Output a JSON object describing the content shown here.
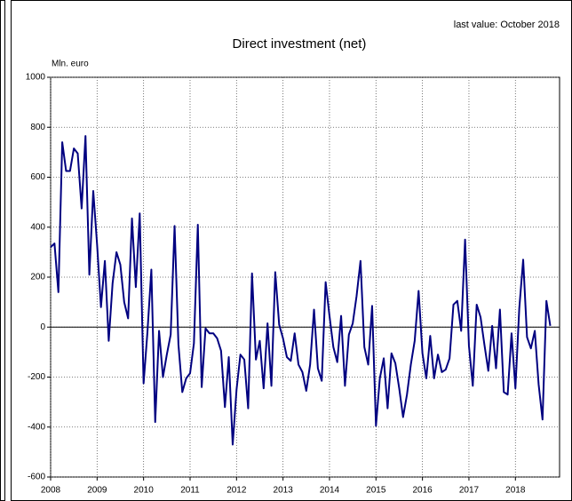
{
  "chart_data": {
    "type": "line",
    "title": "Direct investment (net)",
    "annotation": "last value: October 2018",
    "y_axis_label": "Mln. euro",
    "color": "#000080",
    "x": [
      2008,
      2008.083,
      2008.167,
      2008.25,
      2008.333,
      2008.417,
      2008.5,
      2008.583,
      2008.667,
      2008.75,
      2008.833,
      2008.917,
      2009,
      2009.083,
      2009.167,
      2009.25,
      2009.333,
      2009.417,
      2009.5,
      2009.583,
      2009.667,
      2009.75,
      2009.833,
      2009.917,
      2010,
      2010.083,
      2010.167,
      2010.25,
      2010.333,
      2010.417,
      2010.5,
      2010.583,
      2010.667,
      2010.75,
      2010.833,
      2010.917,
      2011,
      2011.083,
      2011.167,
      2011.25,
      2011.333,
      2011.417,
      2011.5,
      2011.583,
      2011.667,
      2011.75,
      2011.833,
      2011.917,
      2012,
      2012.083,
      2012.167,
      2012.25,
      2012.333,
      2012.417,
      2012.5,
      2012.583,
      2012.667,
      2012.75,
      2012.833,
      2012.917,
      2013,
      2013.083,
      2013.167,
      2013.25,
      2013.333,
      2013.417,
      2013.5,
      2013.583,
      2013.667,
      2013.75,
      2013.833,
      2013.917,
      2014,
      2014.083,
      2014.167,
      2014.25,
      2014.333,
      2014.417,
      2014.5,
      2014.583,
      2014.667,
      2014.75,
      2014.833,
      2014.917,
      2015,
      2015.083,
      2015.167,
      2015.25,
      2015.333,
      2015.417,
      2015.5,
      2015.583,
      2015.667,
      2015.75,
      2015.833,
      2015.917,
      2016,
      2016.083,
      2016.167,
      2016.25,
      2016.333,
      2016.417,
      2016.5,
      2016.583,
      2016.667,
      2016.75,
      2016.833,
      2016.917,
      2017,
      2017.083,
      2017.167,
      2017.25,
      2017.333,
      2017.417,
      2017.5,
      2017.583,
      2017.667,
      2017.75,
      2017.833,
      2017.917,
      2018,
      2018.083,
      2018.167,
      2018.25,
      2018.333,
      2018.417,
      2018.5,
      2018.583,
      2018.667,
      2018.75
    ],
    "values": [
      320,
      335,
      140,
      740,
      625,
      625,
      715,
      695,
      475,
      765,
      210,
      545,
      330,
      80,
      265,
      -55,
      175,
      300,
      250,
      100,
      35,
      435,
      160,
      455,
      -225,
      -20,
      230,
      -380,
      -15,
      -200,
      -110,
      -30,
      405,
      -70,
      -260,
      -205,
      -185,
      -65,
      410,
      -240,
      -5,
      -25,
      -25,
      -45,
      -95,
      -320,
      -120,
      -470,
      -250,
      -110,
      -130,
      -325,
      215,
      -130,
      -55,
      -245,
      15,
      -235,
      220,
      10,
      -45,
      -120,
      -135,
      -25,
      -150,
      -180,
      -255,
      -150,
      70,
      -165,
      -215,
      180,
      45,
      -80,
      -140,
      45,
      -235,
      -30,
      15,
      125,
      265,
      -80,
      -150,
      85,
      -395,
      -205,
      -125,
      -325,
      -105,
      -145,
      -245,
      -360,
      -270,
      -150,
      -55,
      145,
      -105,
      -205,
      -35,
      -205,
      -110,
      -180,
      -170,
      -125,
      90,
      105,
      -15,
      350,
      -75,
      -235,
      90,
      40,
      -70,
      -175,
      5,
      -165,
      70,
      -260,
      -270,
      -25,
      -245,
      75,
      270,
      -40,
      -85,
      -15,
      -230,
      -370,
      105,
      5
    ],
    "xlim": [
      2008,
      2018.95
    ],
    "xticks": [
      2008,
      2009,
      2010,
      2011,
      2012,
      2013,
      2014,
      2015,
      2016,
      2017,
      2018
    ],
    "ylim": [
      -600,
      1000
    ],
    "yticks": [
      -600,
      -400,
      -200,
      0,
      200,
      400,
      600,
      800,
      1000
    ],
    "grid": true
  }
}
